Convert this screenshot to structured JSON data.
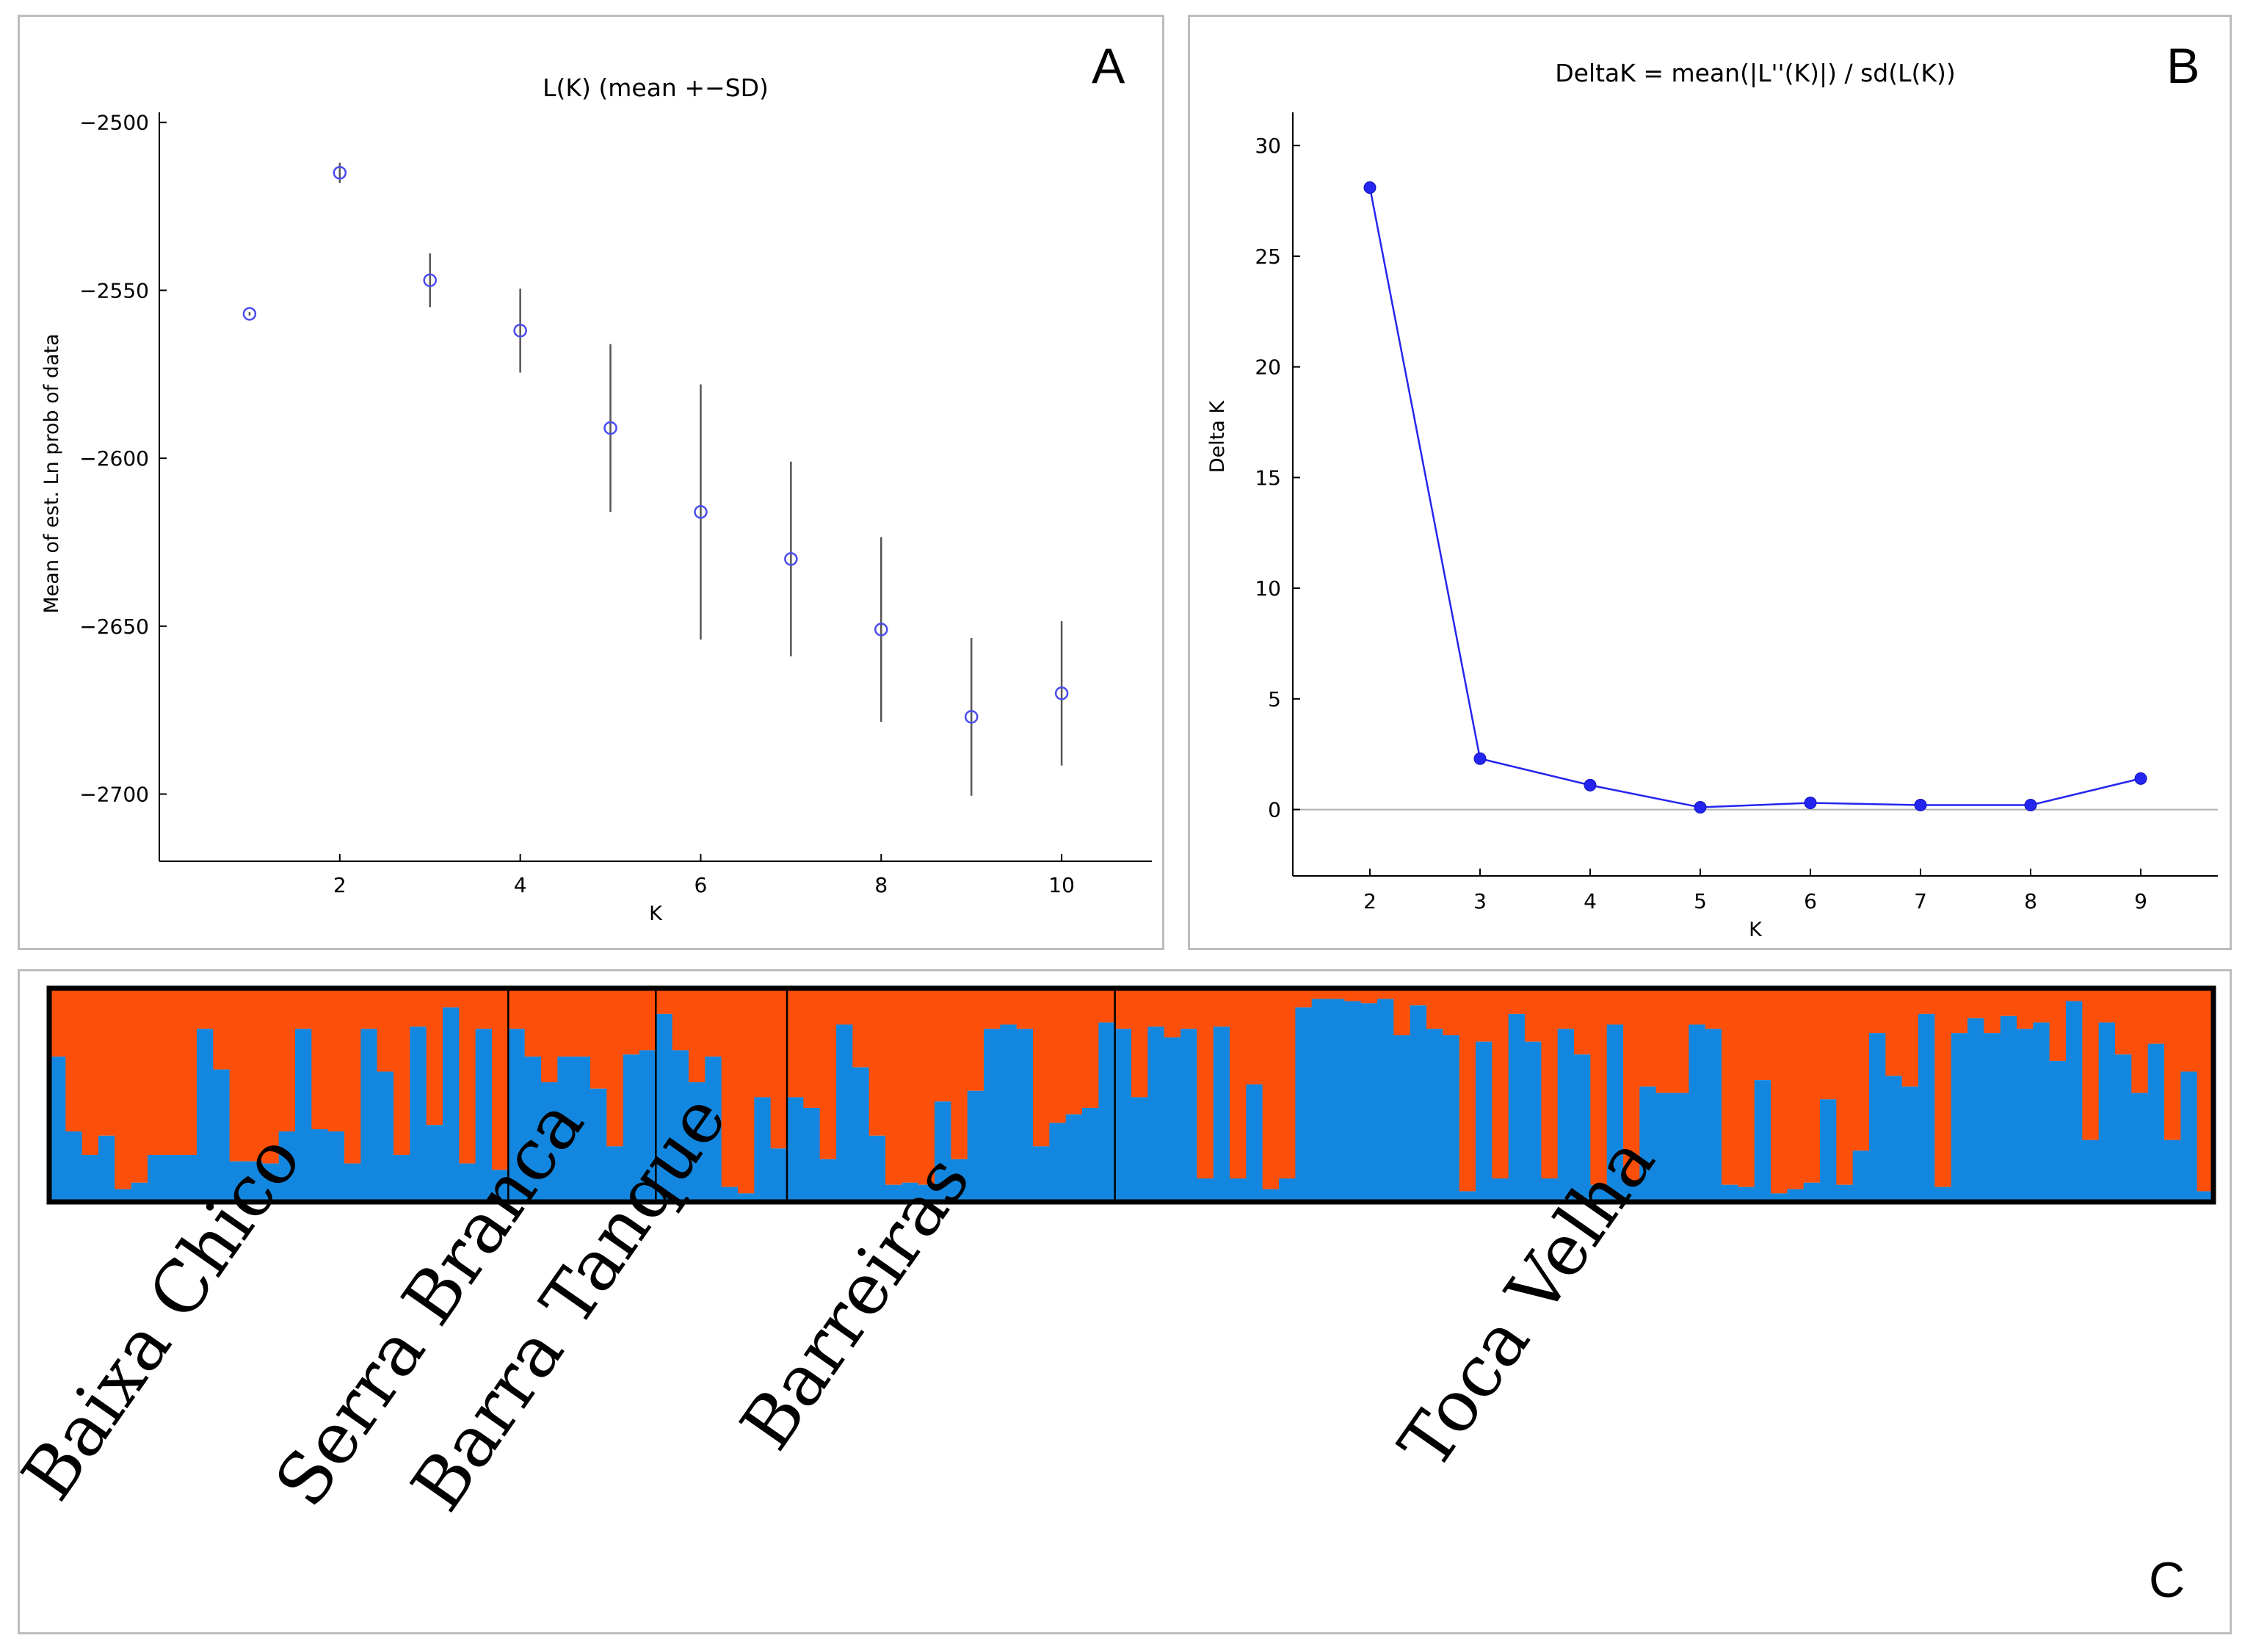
{
  "chart_data": [
    {
      "panel": "A",
      "type": "scatter",
      "title": "L(K) (mean +−SD)",
      "xlabel": "K",
      "ylabel": "Mean of est. Ln prob of data",
      "x": [
        1,
        2,
        3,
        4,
        5,
        6,
        7,
        8,
        9,
        10
      ],
      "mean": [
        -2557,
        -2515,
        -2547,
        -2562,
        -2591,
        -2616,
        -2630,
        -2651,
        -2677,
        -2670
      ],
      "sd": [
        0.5,
        3,
        8,
        12.5,
        25,
        38,
        29,
        27.5,
        23.5,
        21.5
      ],
      "xticks": [
        2,
        4,
        6,
        8,
        10
      ],
      "yticks": [
        -2500,
        -2550,
        -2600,
        -2650,
        -2700
      ],
      "ytick_labels": [
        "−2500",
        "−2550",
        "−2600",
        "−2650",
        "−2700"
      ],
      "xlim": [
        0,
        11
      ],
      "ylim": [
        -2720,
        -2497
      ],
      "color": "#4b4bf0",
      "errorbar_color": "#555555",
      "legend": "none"
    },
    {
      "panel": "B",
      "type": "line",
      "title": "DeltaK = mean(|L''(K)|) / sd(L(K))",
      "xlabel": "K",
      "ylabel": "Delta K",
      "x": [
        2,
        3,
        4,
        5,
        6,
        7,
        8,
        9
      ],
      "values": [
        28.1,
        2.3,
        1.1,
        0.1,
        0.3,
        0.2,
        0.2,
        1.4
      ],
      "xticks": [
        2,
        3,
        4,
        5,
        6,
        7,
        8,
        9
      ],
      "yticks": [
        0,
        5,
        10,
        15,
        20,
        25,
        30
      ],
      "xlim": [
        1.3,
        9.7
      ],
      "ylim": [
        -3,
        31.5
      ],
      "color": "#2525f0",
      "zero_line_color": "#b0b0b0",
      "legend": "none"
    },
    {
      "panel": "C",
      "type": "bar",
      "subtype": "stacked-proportion (STRUCTURE barplot, K=2)",
      "series_colors": {
        "cluster1_blue": "#1387df",
        "cluster2_orange": "#fc4f09"
      },
      "populations": [
        {
          "name": "Baixa Chico",
          "cluster1": [
            0.68,
            0.33,
            0.22,
            0.31,
            0.06,
            0.09,
            0.22,
            0.22,
            0.22,
            0.81,
            0.62,
            0.19,
            0.19,
            0.18,
            0.33,
            0.81,
            0.34,
            0.33,
            0.18,
            0.81,
            0.61,
            0.22,
            0.82,
            0.36,
            0.91,
            0.18,
            0.81,
            0.15
          ]
        },
        {
          "name": "Serra Branca",
          "cluster1": [
            0.81,
            0.68,
            0.56,
            0.68,
            0.68,
            0.53,
            0.26,
            0.69,
            0.71
          ]
        },
        {
          "name": "Barra Tanque",
          "cluster1": [
            0.88,
            0.71,
            0.56,
            0.68,
            0.07,
            0.04,
            0.49,
            0.25
          ]
        },
        {
          "name": "Barreiras",
          "cluster1": [
            0.49,
            0.44,
            0.2,
            0.83,
            0.63,
            0.31,
            0.08,
            0.09,
            0.08,
            0.47,
            0.2,
            0.52,
            0.81,
            0.83,
            0.81,
            0.26,
            0.37,
            0.41,
            0.44,
            0.84
          ]
        },
        {
          "name": "Toca Velha",
          "cluster1": [
            0.81,
            0.49,
            0.82,
            0.77,
            0.81,
            0.11,
            0.82,
            0.11,
            0.55,
            0.06,
            0.11,
            0.91,
            0.95,
            0.95,
            0.94,
            0.93,
            0.95,
            0.78,
            0.92,
            0.81,
            0.78,
            0.05,
            0.75,
            0.11,
            0.88,
            0.75,
            0.11,
            0.81,
            0.69,
            0.08,
            0.83,
            0.09,
            0.54,
            0.51,
            0.51,
            0.83,
            0.81,
            0.08,
            0.07,
            0.57,
            0.04,
            0.06,
            0.09,
            0.48,
            0.08,
            0.24,
            0.79,
            0.59,
            0.54,
            0.88,
            0.07,
            0.79,
            0.86,
            0.79,
            0.87,
            0.81,
            0.84,
            0.66,
            0.94,
            0.29,
            0.84,
            0.69,
            0.51,
            0.74,
            0.29,
            0.61,
            0.05
          ]
        }
      ]
    }
  ],
  "panels": {
    "a": "A",
    "b": "B",
    "c": "C"
  }
}
